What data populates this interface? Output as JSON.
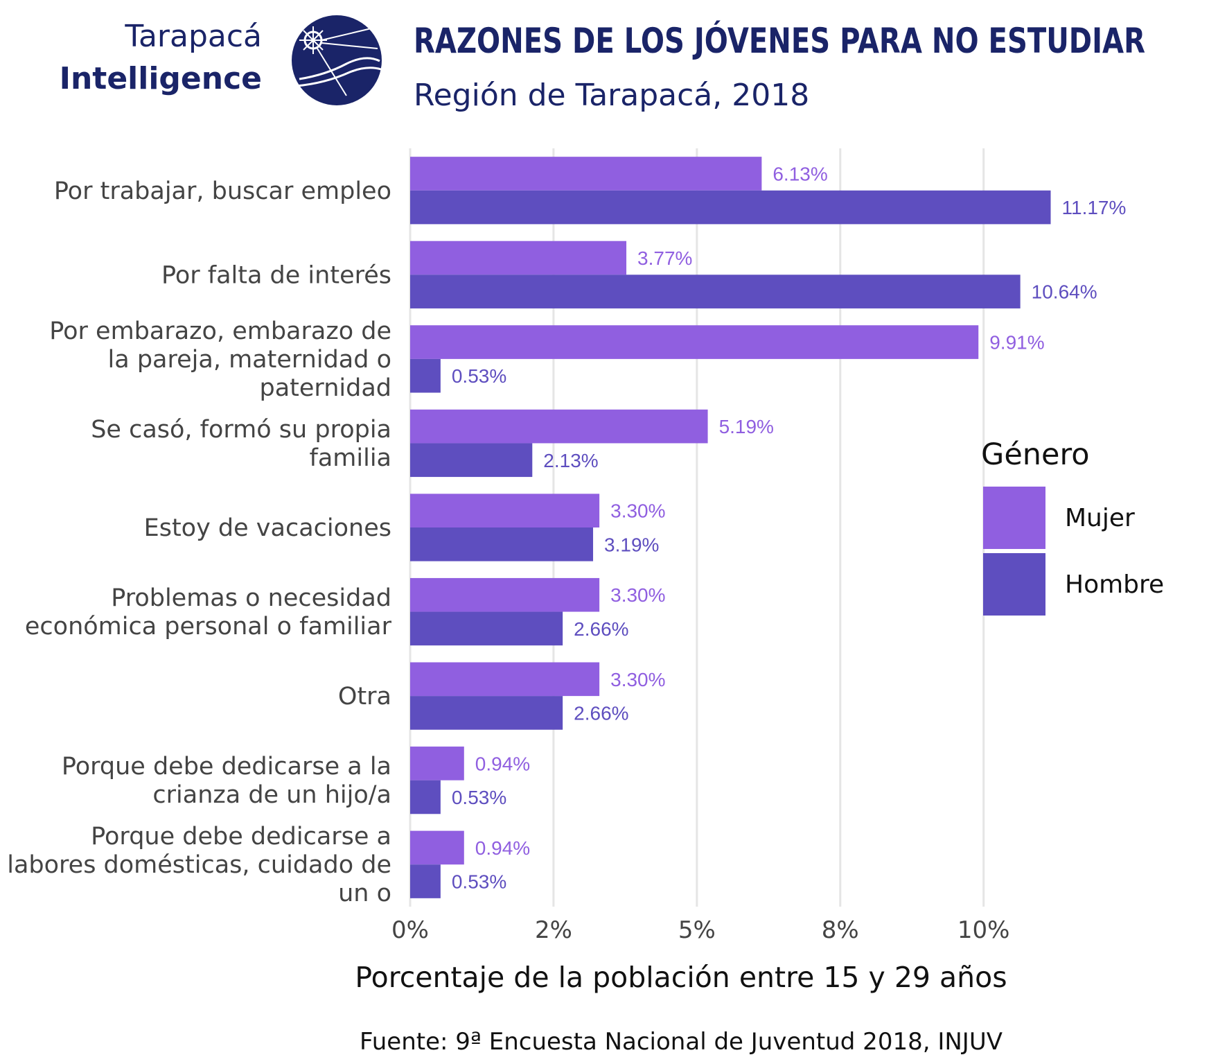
{
  "brand": {
    "line1": "Tarapacá",
    "line2": "Intelligence",
    "logo_icon": "globe-compass-icon"
  },
  "colors": {
    "mujer": "#905fe0",
    "hombre": "#5e4ebf",
    "title": "#1a2468",
    "grid": "#e5e5e5"
  },
  "chart_data": {
    "type": "bar",
    "orientation": "horizontal",
    "title": "RAZONES DE LOS JÓVENES PARA NO ESTUDIAR",
    "subtitle": "Región de Tarapacá, 2018",
    "xlabel": "Porcentaje de la población entre 15 y 29 años",
    "ylabel": "",
    "xlim": [
      0,
      0.1329
    ],
    "x_ticks": [
      0,
      0.025,
      0.05,
      0.075,
      0.1
    ],
    "x_tick_labels": [
      "0%",
      "2%",
      "5%",
      "8%",
      "10%"
    ],
    "grid": true,
    "legend": {
      "title": "Género",
      "placement": "right"
    },
    "source": "Fuente: 9ª Encuesta Nacional de Juventud 2018, INJUV",
    "categories": [
      [
        "Por trabajar, buscar empleo"
      ],
      [
        "Por falta de interés"
      ],
      [
        "Por embarazo, embarazo de",
        "la pareja, maternidad o",
        "paternidad"
      ],
      [
        "Se casó, formó su propia",
        "familia"
      ],
      [
        "Estoy de vacaciones"
      ],
      [
        "Problemas o necesidad",
        "económica personal o familiar"
      ],
      [
        "Otra"
      ],
      [
        "Porque debe dedicarse a la",
        "crianza de un hijo/a"
      ],
      [
        "Porque debe dedicarse a",
        "labores domésticas, cuidado de",
        "un o"
      ]
    ],
    "series": [
      {
        "name": "Mujer",
        "values": [
          0.0613,
          0.0377,
          0.0991,
          0.0519,
          0.033,
          0.033,
          0.033,
          0.0094,
          0.0094
        ],
        "labels": [
          "6.13%",
          "3.77%",
          "9.91%",
          "5.19%",
          "3.30%",
          "3.30%",
          "3.30%",
          "0.94%",
          "0.94%"
        ]
      },
      {
        "name": "Hombre",
        "values": [
          0.1117,
          0.1064,
          0.0053,
          0.0213,
          0.0319,
          0.0266,
          0.0266,
          0.0053,
          0.0053
        ],
        "labels": [
          "11.17%",
          "10.64%",
          "0.53%",
          "2.13%",
          "3.19%",
          "2.66%",
          "2.66%",
          "0.53%",
          "0.53%"
        ]
      }
    ]
  }
}
